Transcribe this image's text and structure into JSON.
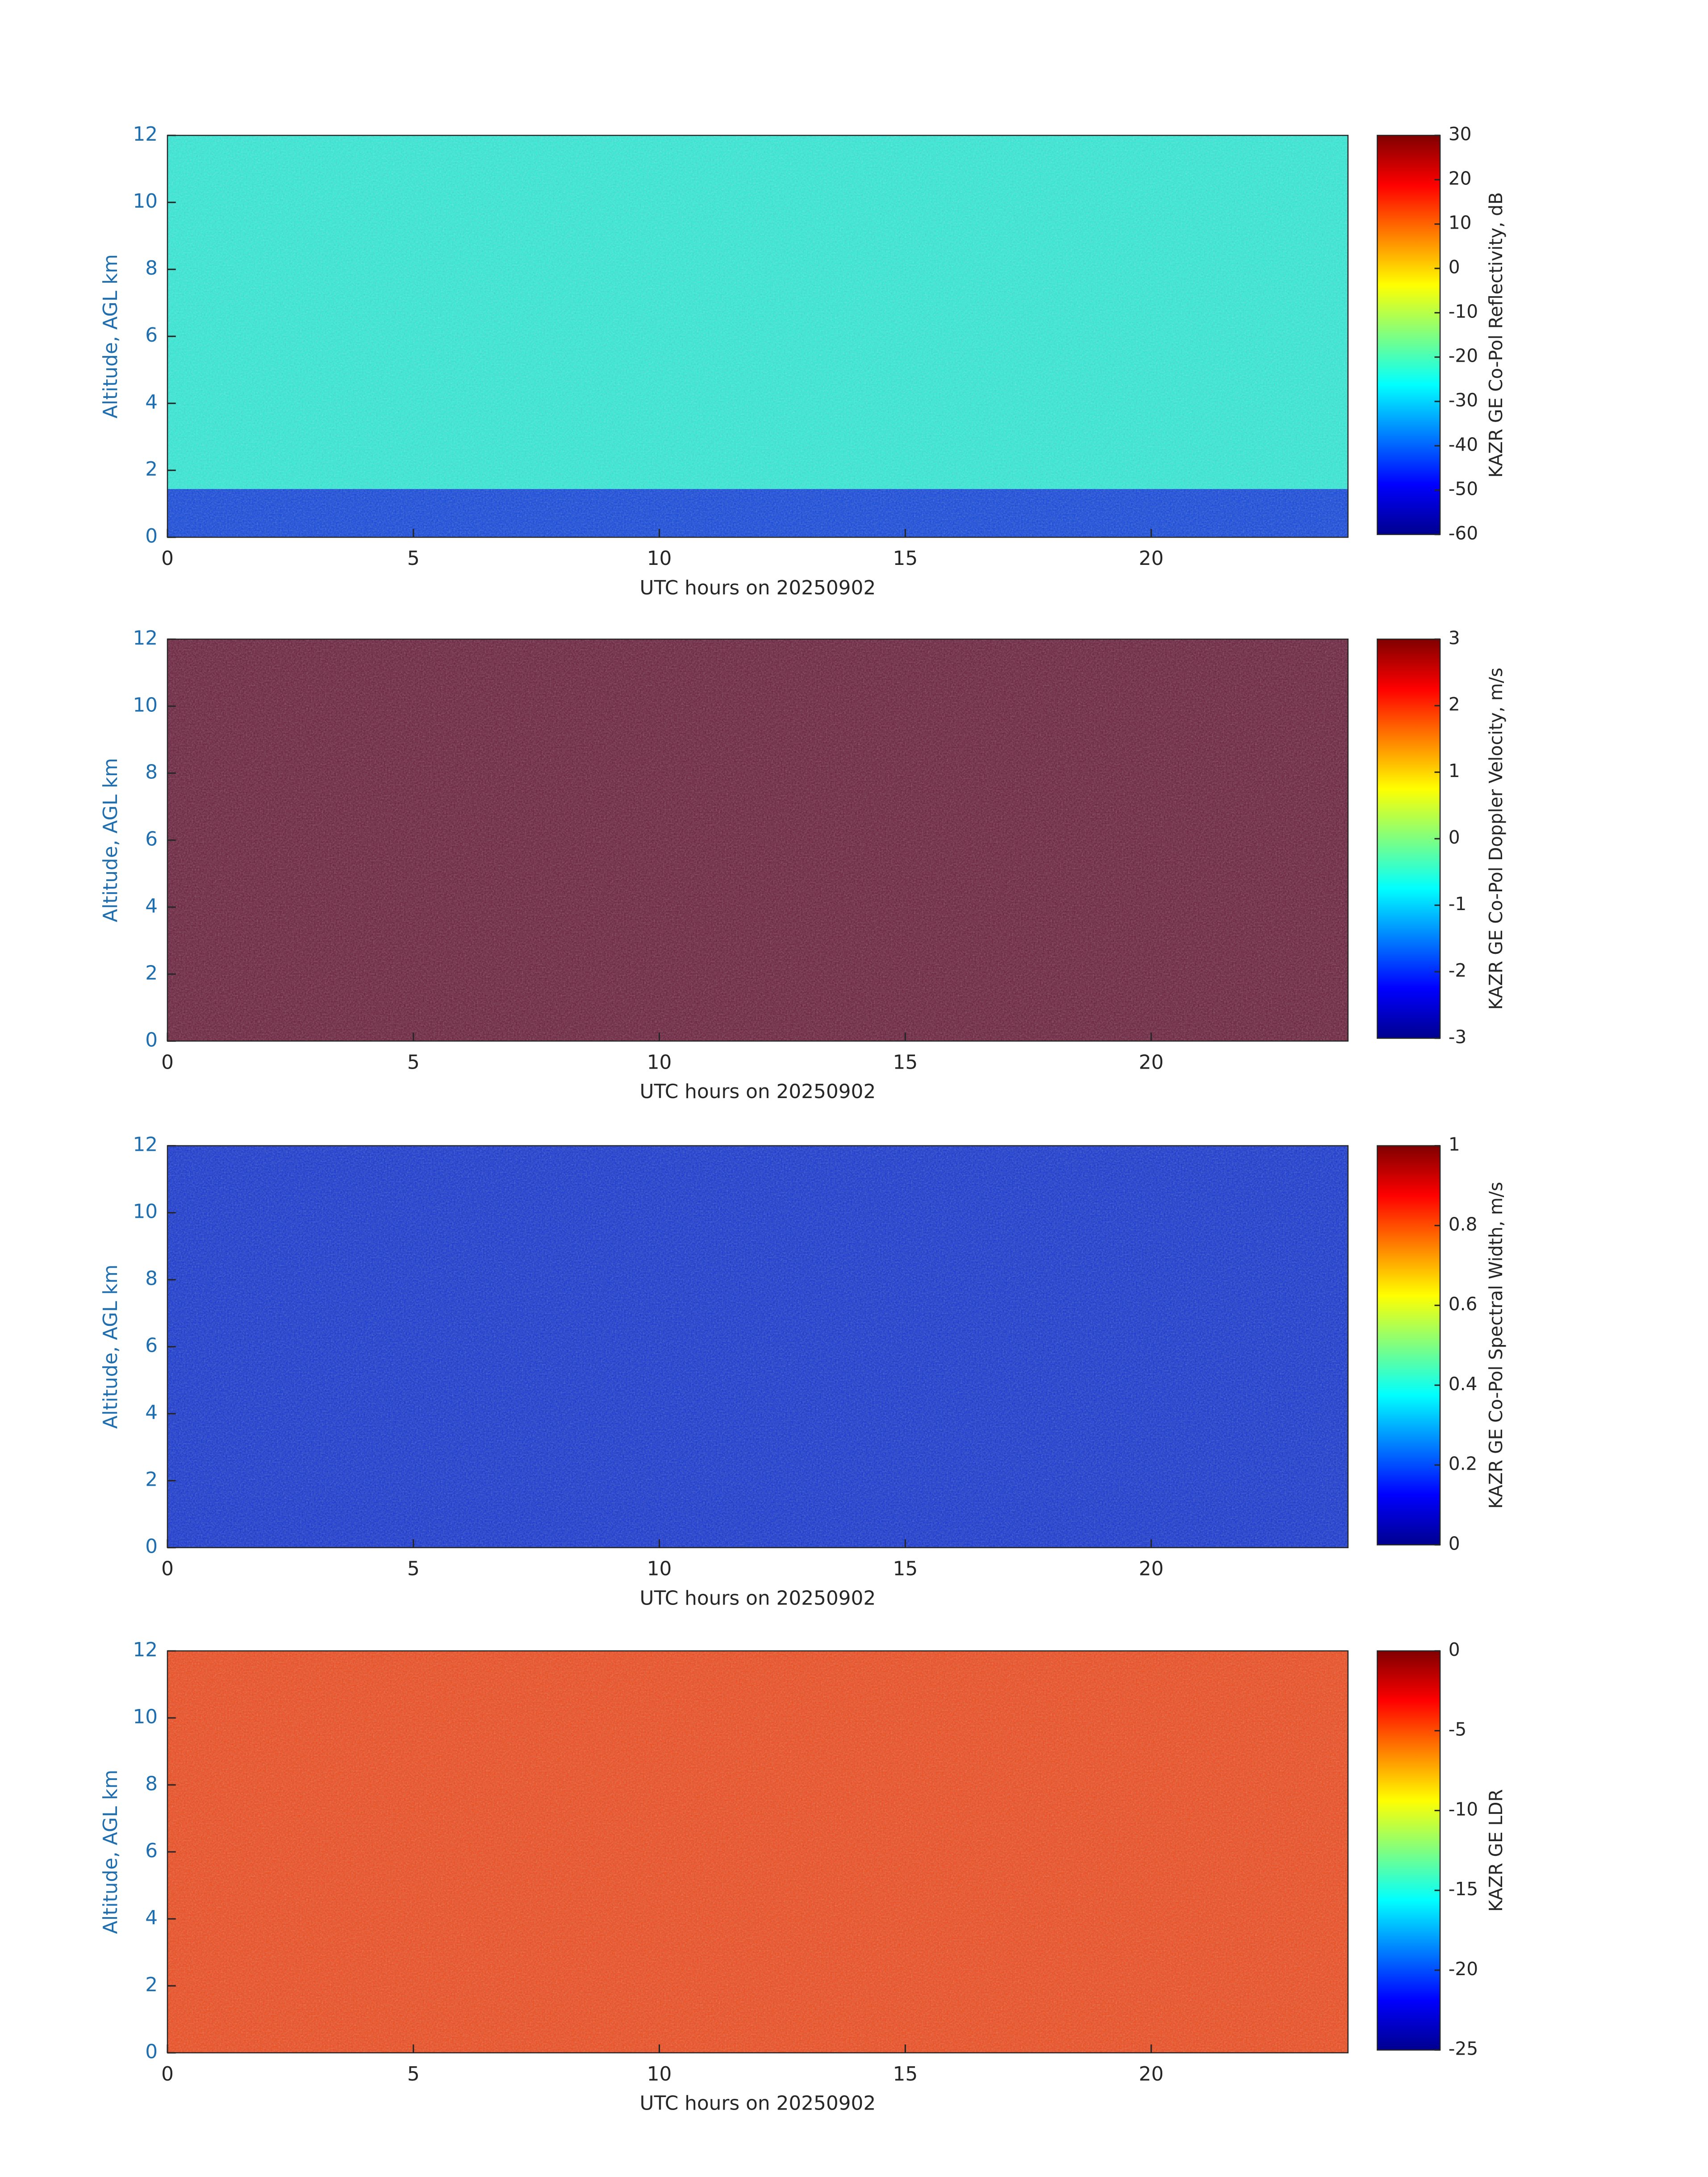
{
  "chart_data": [
    {
      "type": "heatmap",
      "xlabel": "UTC hours on 20250902",
      "ylabel": "Altitude, AGL km",
      "xlim": [
        0,
        24
      ],
      "xticks": [
        0,
        5,
        10,
        15,
        20
      ],
      "ylim": [
        0,
        12
      ],
      "yticks": [
        0,
        2,
        4,
        6,
        8,
        10,
        12
      ],
      "colorbar_label": "KAZR GE Co-Pol Reflectivity, dB",
      "clim": [
        -60,
        30
      ],
      "cticks": [
        -60,
        -50,
        -40,
        -30,
        -20,
        -10,
        0,
        10,
        20,
        30
      ],
      "colormap": "jet",
      "background_color": "#30ecd8",
      "low_color": "#0a1ee0"
    },
    {
      "type": "heatmap",
      "xlabel": "UTC hours on 20250902",
      "ylabel": "Altitude, AGL km",
      "xlim": [
        0,
        24
      ],
      "xticks": [
        0,
        5,
        10,
        15,
        20
      ],
      "ylim": [
        0,
        12
      ],
      "yticks": [
        0,
        2,
        4,
        6,
        8,
        10,
        12
      ],
      "colorbar_label": "KAZR GE Co-Pol Doppler Velocity, m/s",
      "clim": [
        -3,
        3
      ],
      "cticks": [
        -3,
        -2,
        -1,
        0,
        1,
        2,
        3
      ],
      "colormap": "jet",
      "background_color": "#6a1e3a",
      "low_color": "#6a1e3a"
    },
    {
      "type": "heatmap",
      "xlabel": "UTC hours on 20250902",
      "ylabel": "Altitude, AGL km",
      "xlim": [
        0,
        24
      ],
      "xticks": [
        0,
        5,
        10,
        15,
        20
      ],
      "ylim": [
        0,
        12
      ],
      "yticks": [
        0,
        2,
        4,
        6,
        8,
        10,
        12
      ],
      "colorbar_label": "KAZR GE Co-Pol Spectral Width, m/s",
      "clim": [
        0,
        1
      ],
      "cticks": [
        0,
        0.2,
        0.4,
        0.6,
        0.8,
        1
      ],
      "colormap": "jet",
      "background_color": "#1436d2",
      "low_color": "#1436d2"
    },
    {
      "type": "heatmap",
      "xlabel": "UTC hours on 20250902",
      "ylabel": "Altitude, AGL km",
      "xlim": [
        0,
        24
      ],
      "xticks": [
        0,
        5,
        10,
        15,
        20
      ],
      "ylim": [
        0,
        12
      ],
      "yticks": [
        0,
        2,
        4,
        6,
        8,
        10,
        12
      ],
      "colorbar_label": "KAZR GE LDR",
      "clim": [
        -25,
        0
      ],
      "cticks": [
        -25,
        -20,
        -15,
        -10,
        -5,
        0
      ],
      "colormap": "jet",
      "background_color": "#f04a1c",
      "low_color": "#f04a1c"
    }
  ]
}
